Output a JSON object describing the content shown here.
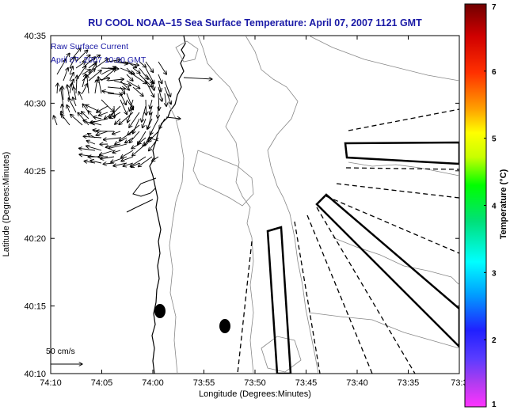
{
  "title": "RU COOL  NOAA–15  Sea Surface Temperature:  April 07, 2007 1121 GMT",
  "annotations": {
    "line1": "Raw Surface Current",
    "line2": "April 07, 2007 10:00 GMT"
  },
  "scale_label": "50 cm/s",
  "colorbar": {
    "label": "Temperature (°C)",
    "ticks": [
      "1",
      "2",
      "3",
      "4",
      "5",
      "6",
      "7"
    ],
    "colors": [
      "#ff33ff",
      "#b03cf0",
      "#3a3aff",
      "#00b4ff",
      "#00ffff",
      "#00e07a",
      "#00ff00",
      "#c8ff00",
      "#ffff00",
      "#ffa000",
      "#ff3000",
      "#d00000",
      "#700000"
    ]
  },
  "chart_data": {
    "type": "map",
    "title": "RU COOL  NOAA–15  Sea Surface Temperature:  April 07, 2007 1121 GMT",
    "xlabel": "Longitude (Degrees:Minutes)",
    "ylabel": "Latitude (Degrees:Minutes)",
    "x_ticks": [
      "74:10",
      "74:05",
      "74:00",
      "73:55",
      "73:50",
      "73:45",
      "73:40",
      "73:35",
      "73:3"
    ],
    "y_ticks": [
      "40:35",
      "40:30",
      "40:25",
      "40:20",
      "40:15",
      "40:10"
    ],
    "colorbar_range": [
      1,
      7
    ]
  }
}
